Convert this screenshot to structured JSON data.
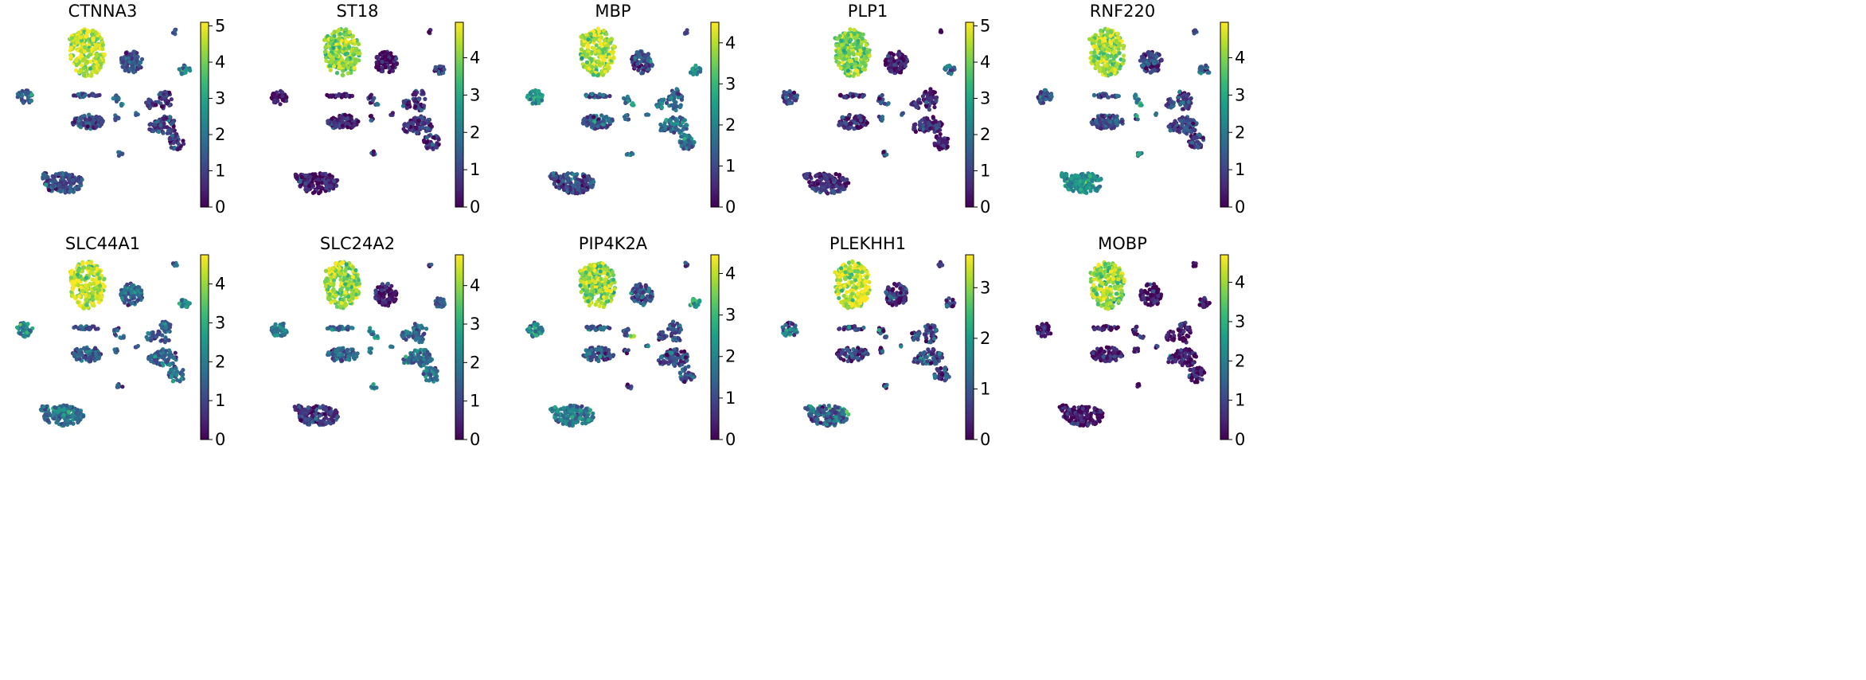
{
  "figure": {
    "colormap": "viridis",
    "colormap_stops": [
      "#440154",
      "#482878",
      "#3e4989",
      "#31688e",
      "#26828e",
      "#1f9e89",
      "#35b779",
      "#6ece58",
      "#b5de2b",
      "#fde725"
    ]
  },
  "chart_data": [
    {
      "type": "scatter",
      "title": "CTNNA3",
      "vmax": 5.1,
      "ticks": [
        0,
        1,
        2,
        3,
        4,
        5
      ],
      "cluster_levels": {
        "oligo": 4.6,
        "top_right": 1.3,
        "right_small": 2.3,
        "left_blob": 1.6,
        "mid_band": 1.1,
        "mid_small": 1.6,
        "tiny_mid": 2.5,
        "right_column": 0.9,
        "bottom_blob": 1.2
      }
    },
    {
      "type": "scatter",
      "title": "ST18",
      "vmax": 4.95,
      "ticks": [
        0,
        1,
        2,
        3,
        4
      ],
      "cluster_levels": {
        "oligo": 4.1,
        "top_right": 0.3,
        "right_small": 0.9,
        "left_blob": 0.3,
        "mid_band": 0.5,
        "mid_small": 0.5,
        "tiny_mid": 2.2,
        "right_column": 0.7,
        "bottom_blob": 0.4
      }
    },
    {
      "type": "scatter",
      "title": "MBP",
      "vmax": 4.5,
      "ticks": [
        0,
        1,
        2,
        3,
        4
      ],
      "cluster_levels": {
        "oligo": 4.0,
        "top_right": 1.1,
        "right_small": 2.3,
        "left_blob": 2.3,
        "mid_band": 1.2,
        "mid_small": 1.6,
        "tiny_mid": 3.0,
        "right_column": 1.6,
        "bottom_blob": 1.0
      }
    },
    {
      "type": "scatter",
      "title": "PLP1",
      "vmax": 5.1,
      "ticks": [
        0,
        1,
        2,
        3,
        4,
        5
      ],
      "cluster_levels": {
        "oligo": 4.1,
        "top_right": 0.4,
        "right_small": 1.9,
        "left_blob": 1.0,
        "mid_band": 0.6,
        "mid_small": 1.2,
        "tiny_mid": 2.4,
        "right_column": 0.6,
        "bottom_blob": 0.7
      }
    },
    {
      "type": "scatter",
      "title": "RNF220",
      "vmax": 4.95,
      "ticks": [
        0,
        1,
        2,
        3,
        4
      ],
      "cluster_levels": {
        "oligo": 4.2,
        "top_right": 0.9,
        "right_small": 1.6,
        "left_blob": 1.5,
        "mid_band": 1.1,
        "mid_small": 1.8,
        "tiny_mid": 3.9,
        "right_column": 1.0,
        "bottom_blob": 2.4
      }
    },
    {
      "type": "scatter",
      "title": "SLC44A1",
      "vmax": 4.75,
      "ticks": [
        0,
        1,
        2,
        3,
        4
      ],
      "cluster_levels": {
        "oligo": 4.3,
        "top_right": 1.6,
        "right_small": 2.4,
        "left_blob": 2.2,
        "mid_band": 1.3,
        "mid_small": 1.4,
        "tiny_mid": 2.2,
        "right_column": 1.5,
        "bottom_blob": 1.8
      }
    },
    {
      "type": "scatter",
      "title": "SLC24A2",
      "vmax": 4.8,
      "ticks": [
        0,
        1,
        2,
        3,
        4
      ],
      "cluster_levels": {
        "oligo": 4.0,
        "top_right": 0.3,
        "right_small": 1.2,
        "left_blob": 1.9,
        "mid_band": 1.5,
        "mid_small": 1.9,
        "tiny_mid": 3.0,
        "right_column": 1.8,
        "bottom_blob": 0.9
      }
    },
    {
      "type": "scatter",
      "title": "PIP4K2A",
      "vmax": 4.45,
      "ticks": [
        0,
        1,
        2,
        3,
        4
      ],
      "cluster_levels": {
        "oligo": 3.7,
        "top_right": 1.0,
        "right_small": 2.8,
        "left_blob": 2.2,
        "mid_band": 1.2,
        "mid_small": 1.3,
        "tiny_mid": 3.9,
        "right_column": 1.1,
        "bottom_blob": 1.8
      }
    },
    {
      "type": "scatter",
      "title": "PLEKHH1",
      "vmax": 3.65,
      "ticks": [
        0,
        1,
        2,
        3
      ],
      "cluster_levels": {
        "oligo": 3.3,
        "top_right": 0.6,
        "right_small": 0.8,
        "left_blob": 1.3,
        "mid_band": 0.7,
        "mid_small": 0.8,
        "tiny_mid": 1.5,
        "right_column": 0.7,
        "bottom_blob": 1.1
      }
    },
    {
      "type": "scatter",
      "title": "MOBP",
      "vmax": 4.7,
      "ticks": [
        0,
        1,
        2,
        3,
        4
      ],
      "cluster_levels": {
        "oligo": 4.0,
        "top_right": 0.3,
        "right_small": 0.5,
        "left_blob": 0.2,
        "mid_band": 0.3,
        "mid_small": 0.3,
        "tiny_mid": 1.2,
        "right_column": 0.3,
        "bottom_blob": 0.2
      }
    }
  ]
}
